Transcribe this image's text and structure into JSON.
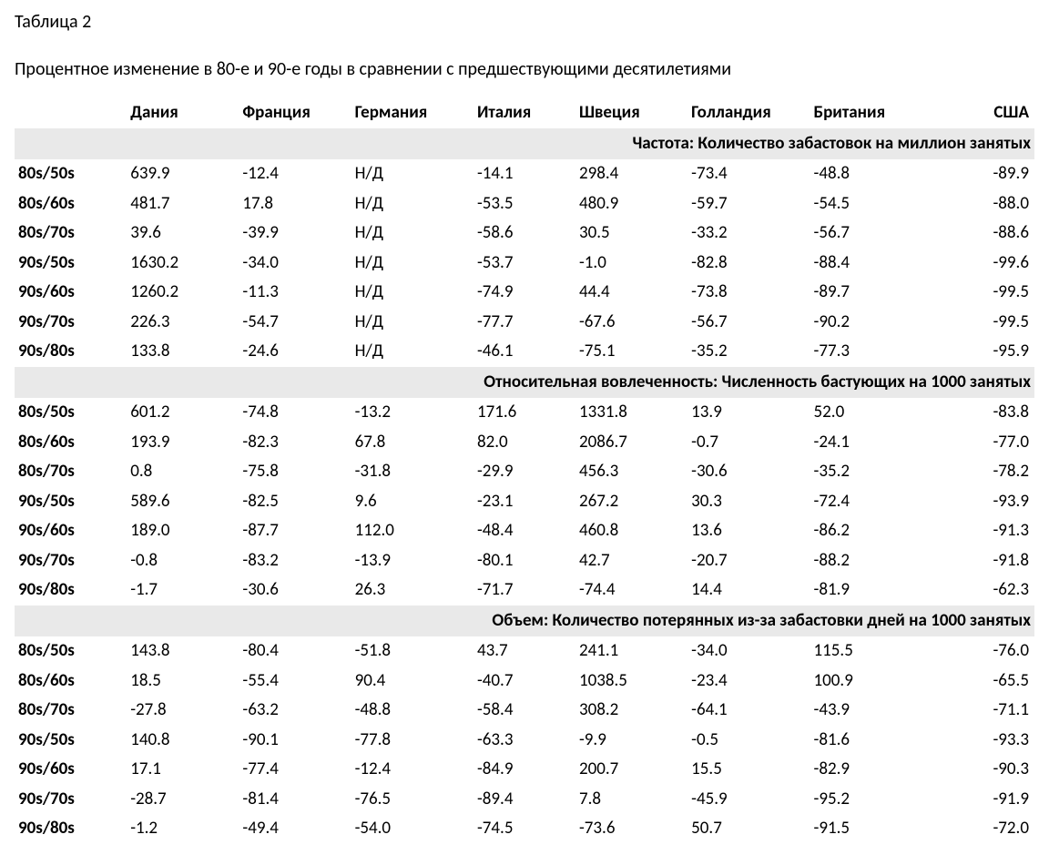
{
  "title": "Таблица 2",
  "subtitle": "Процентное изменение в 80-е и 90-е годы в сравнении с предшествующими десятилетиями",
  "columns": [
    "",
    "Дания",
    "Франция",
    "Германия",
    "Италия",
    "Швеция",
    "Голландия",
    "Британия",
    "США"
  ],
  "sections": [
    {
      "header": "Частота: Количество забастовок на миллион занятых",
      "rows": [
        {
          "label": "80s/50s",
          "cells": [
            "639.9",
            "-12.4",
            "Н/Д",
            "-14.1",
            "298.4",
            "-73.4",
            "-48.8",
            "-89.9"
          ]
        },
        {
          "label": "80s/60s",
          "cells": [
            "481.7",
            "17.8",
            "Н/Д",
            "-53.5",
            "480.9",
            "-59.7",
            "-54.5",
            "-88.0"
          ]
        },
        {
          "label": "80s/70s",
          "cells": [
            "39.6",
            "-39.9",
            "Н/Д",
            "-58.6",
            "30.5",
            "-33.2",
            "-56.7",
            "-88.6"
          ]
        },
        {
          "label": "90s/50s",
          "cells": [
            "1630.2",
            "-34.0",
            "Н/Д",
            "-53.7",
            "-1.0",
            "-82.8",
            "-88.4",
            "-99.6"
          ]
        },
        {
          "label": "90s/60s",
          "cells": [
            "1260.2",
            "-11.3",
            "Н/Д",
            "-74.9",
            "44.4",
            "-73.8",
            "-89.7",
            "-99.5"
          ]
        },
        {
          "label": "90s/70s",
          "cells": [
            "226.3",
            "-54.7",
            "Н/Д",
            "-77.7",
            "-67.6",
            "-56.7",
            "-90.2",
            "-99.5"
          ]
        },
        {
          "label": "90s/80s",
          "cells": [
            "133.8",
            "-24.6",
            "Н/Д",
            "-46.1",
            "-75.1",
            "-35.2",
            "-77.3",
            "-95.9"
          ]
        }
      ]
    },
    {
      "header": "Относительная вовлеченность: Численность бастующих на 1000 занятых",
      "rows": [
        {
          "label": "80s/50s",
          "cells": [
            "601.2",
            "-74.8",
            "-13.2",
            "171.6",
            "1331.8",
            "13.9",
            "52.0",
            "-83.8"
          ]
        },
        {
          "label": "80s/60s",
          "cells": [
            "193.9",
            "-82.3",
            "67.8",
            "82.0",
            "2086.7",
            "-0.7",
            "-24.1",
            "-77.0"
          ]
        },
        {
          "label": "80s/70s",
          "cells": [
            "0.8",
            "-75.8",
            "-31.8",
            "-29.9",
            "456.3",
            "-30.6",
            "-35.2",
            "-78.2"
          ]
        },
        {
          "label": "90s/50s",
          "cells": [
            "589.6",
            "-82.5",
            "9.6",
            "-23.1",
            "267.2",
            "30.3",
            "-72.4",
            "-93.9"
          ]
        },
        {
          "label": "90s/60s",
          "cells": [
            "189.0",
            "-87.7",
            "112.0",
            "-48.4",
            "460.8",
            "13.6",
            "-86.2",
            "-91.3"
          ]
        },
        {
          "label": "90s/70s",
          "cells": [
            "-0.8",
            "-83.2",
            "-13.9",
            "-80.1",
            "42.7",
            "-20.7",
            "-88.2",
            "-91.8"
          ]
        },
        {
          "label": "90s/80s",
          "cells": [
            "-1.7",
            "-30.6",
            "26.3",
            "-71.7",
            "-74.4",
            "14.4",
            "-81.9",
            "-62.3"
          ]
        }
      ]
    },
    {
      "header": "Объем: Количество потерянных из-за забастовки дней на 1000 занятых",
      "rows": [
        {
          "label": "80s/50s",
          "cells": [
            "143.8",
            "-80.4",
            "-51.8",
            "43.7",
            "241.1",
            "-34.0",
            "115.5",
            "-76.0"
          ]
        },
        {
          "label": "80s/60s",
          "cells": [
            "18.5",
            "-55.4",
            "90.4",
            "-40.7",
            "1038.5",
            "-23.4",
            "100.9",
            "-65.5"
          ]
        },
        {
          "label": "80s/70s",
          "cells": [
            "-27.8",
            "-63.2",
            "-48.8",
            "-58.4",
            "308.2",
            "-64.1",
            "-43.9",
            "-71.1"
          ]
        },
        {
          "label": "90s/50s",
          "cells": [
            "140.8",
            "-90.1",
            "-77.8",
            "-63.3",
            "-9.9",
            "-0.5",
            "-81.6",
            "-93.3"
          ]
        },
        {
          "label": "90s/60s",
          "cells": [
            "17.1",
            "-77.4",
            "-12.4",
            "-84.9",
            "200.7",
            "15.5",
            "-82.9",
            "-90.3"
          ]
        },
        {
          "label": "90s/70s",
          "cells": [
            "-28.7",
            "-81.4",
            "-76.5",
            "-89.4",
            "7.8",
            "-45.9",
            "-95.2",
            "-91.9"
          ]
        },
        {
          "label": "90s/80s",
          "cells": [
            "-1.2",
            "-49.4",
            "-54.0",
            "-74.5",
            "-73.6",
            "50.7",
            "-91.5",
            "-72.0"
          ]
        }
      ]
    }
  ],
  "style": {
    "font_family": "Calibri, Arial, sans-serif",
    "title_fontsize": 20,
    "header_fontsize": 19,
    "cell_fontsize": 19,
    "background_color": "#ffffff",
    "section_bg": "#e9e9e9",
    "text_color": "#000000"
  }
}
